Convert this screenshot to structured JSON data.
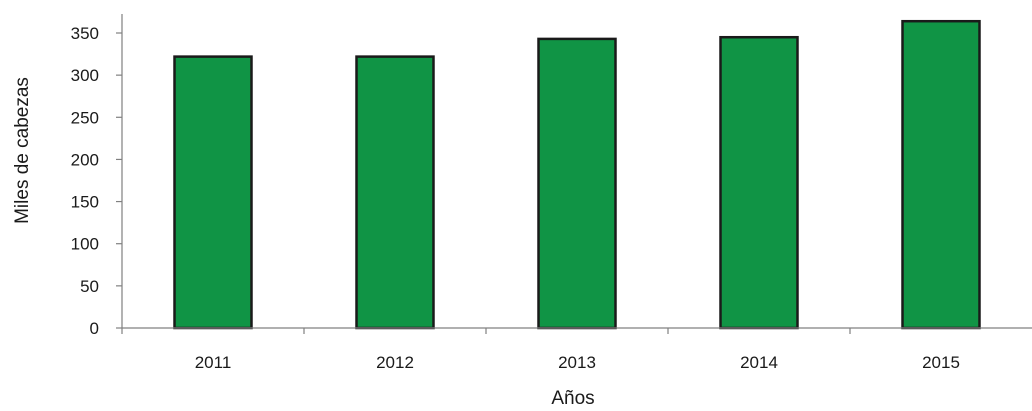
{
  "chart_data": {
    "type": "bar",
    "categories": [
      "2011",
      "2012",
      "2013",
      "2014",
      "2015"
    ],
    "values": [
      322,
      322,
      343,
      345,
      364
    ],
    "title": "",
    "xlabel": "Años",
    "ylabel": "Miles de cabezas",
    "ylim": [
      0,
      350
    ],
    "yticks": [
      0,
      50,
      100,
      150,
      200,
      250,
      300,
      350
    ],
    "grid": false,
    "legend": "none",
    "colors": {
      "bar_fill": "#109445",
      "bar_stroke": "#1a1a1a",
      "axis": "#808080",
      "text": "#1a1a1a"
    }
  }
}
